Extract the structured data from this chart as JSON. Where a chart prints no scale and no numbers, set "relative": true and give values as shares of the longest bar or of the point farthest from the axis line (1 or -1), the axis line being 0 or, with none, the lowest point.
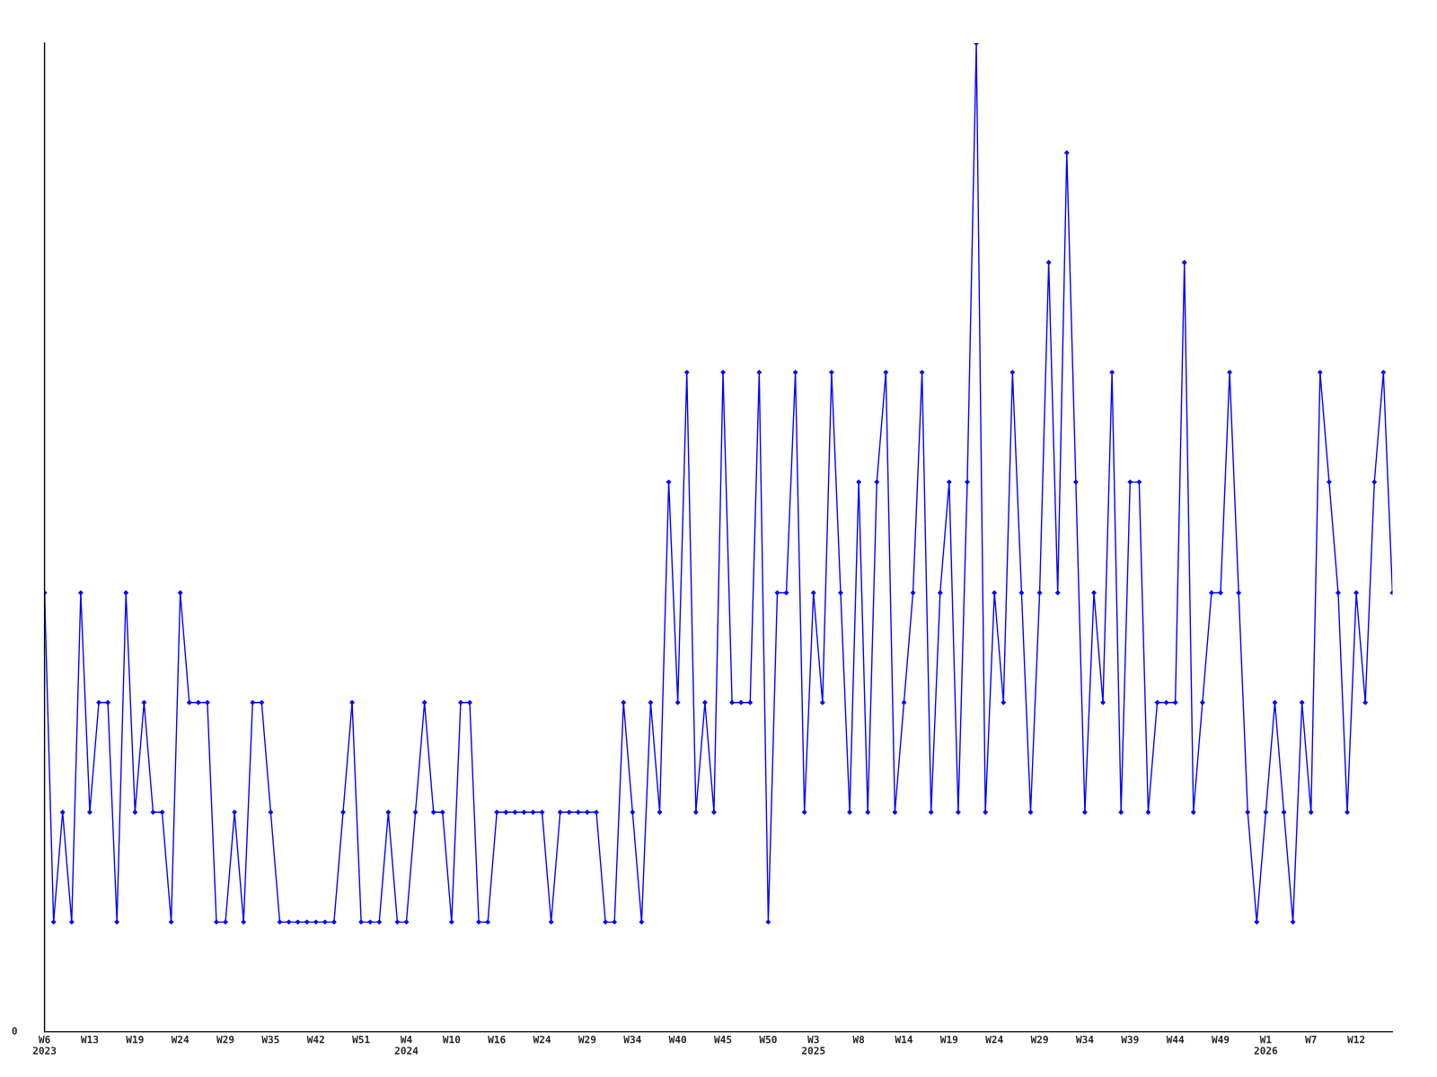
{
  "chart_data": {
    "type": "line",
    "relative": true,
    "marker": "diamond",
    "line_style": "solid",
    "grid": false,
    "legend": false,
    "annotations": [
      "0"
    ],
    "categories": [
      "W6\n2023",
      null,
      null,
      null,
      null,
      "W13",
      null,
      null,
      null,
      null,
      "W19",
      null,
      null,
      null,
      null,
      "W24",
      null,
      null,
      null,
      null,
      "W29",
      null,
      null,
      null,
      null,
      "W35",
      null,
      null,
      null,
      null,
      "W42",
      null,
      null,
      null,
      null,
      "W51",
      null,
      null,
      null,
      null,
      "W4\n2024",
      null,
      null,
      null,
      null,
      "W10",
      null,
      null,
      null,
      null,
      "W16",
      null,
      null,
      null,
      null,
      "W24",
      null,
      null,
      null,
      null,
      "W29",
      null,
      null,
      null,
      null,
      "W34",
      null,
      null,
      null,
      null,
      "W40",
      null,
      null,
      null,
      null,
      "W45",
      null,
      null,
      null,
      null,
      "W50",
      null,
      null,
      null,
      null,
      "W3\n2025",
      null,
      null,
      null,
      null,
      "W8",
      null,
      null,
      null,
      null,
      "W14",
      null,
      null,
      null,
      null,
      "W19",
      null,
      null,
      null,
      null,
      "W24",
      null,
      null,
      null,
      null,
      "W29",
      null,
      null,
      null,
      null,
      "W34",
      null,
      null,
      null,
      null,
      "W39",
      null,
      null,
      null,
      null,
      "W44",
      null,
      null,
      null,
      null,
      "W49",
      null,
      null,
      null,
      null,
      "W1\n2026",
      null,
      null,
      null,
      null,
      "W7",
      null,
      null,
      null,
      null,
      "W12",
      null,
      null,
      null,
      null
    ],
    "series": [
      {
        "color": "#0000ff",
        "values": [
          0.444,
          0.111,
          0.222,
          0.111,
          0.444,
          0.222,
          0.333,
          0.333,
          0.111,
          0.444,
          0.222,
          0.333,
          0.222,
          0.222,
          0.111,
          0.444,
          0.333,
          0.333,
          0.333,
          0.111,
          0.111,
          0.222,
          0.111,
          0.333,
          0.333,
          0.222,
          0.111,
          0.111,
          0.111,
          0.111,
          0.111,
          0.111,
          0.111,
          0.222,
          0.333,
          0.111,
          0.111,
          0.111,
          0.222,
          0.111,
          0.111,
          0.222,
          0.333,
          0.222,
          0.222,
          0.111,
          0.333,
          0.333,
          0.111,
          0.111,
          0.222,
          0.222,
          0.222,
          0.222,
          0.222,
          0.222,
          0.111,
          0.222,
          0.222,
          0.222,
          0.222,
          0.222,
          0.111,
          0.111,
          0.333,
          0.222,
          0.111,
          0.333,
          0.222,
          0.556,
          0.333,
          0.667,
          0.222,
          0.333,
          0.222,
          0.667,
          0.333,
          0.333,
          0.333,
          0.667,
          0.111,
          0.444,
          0.444,
          0.667,
          0.222,
          0.444,
          0.333,
          0.667,
          0.444,
          0.222,
          0.556,
          0.222,
          0.556,
          0.667,
          0.222,
          0.333,
          0.444,
          0.667,
          0.222,
          0.444,
          0.556,
          0.222,
          0.556,
          1,
          0.222,
          0.444,
          0.333,
          0.667,
          0.444,
          0.222,
          0.444,
          0.778,
          0.444,
          0.889,
          0.556,
          0.222,
          0.444,
          0.333,
          0.667,
          0.222,
          0.556,
          0.556,
          0.222,
          0.333,
          0.333,
          0.333,
          0.778,
          0.222,
          0.333,
          0.444,
          0.444,
          0.667,
          0.444,
          0.222,
          0.111,
          0.222,
          0.333,
          0.222,
          0.111,
          0.333,
          0.222,
          0.667,
          0.556,
          0.444,
          0.222,
          0.444,
          0.333,
          0.556,
          0.667,
          0.444
        ]
      }
    ]
  }
}
